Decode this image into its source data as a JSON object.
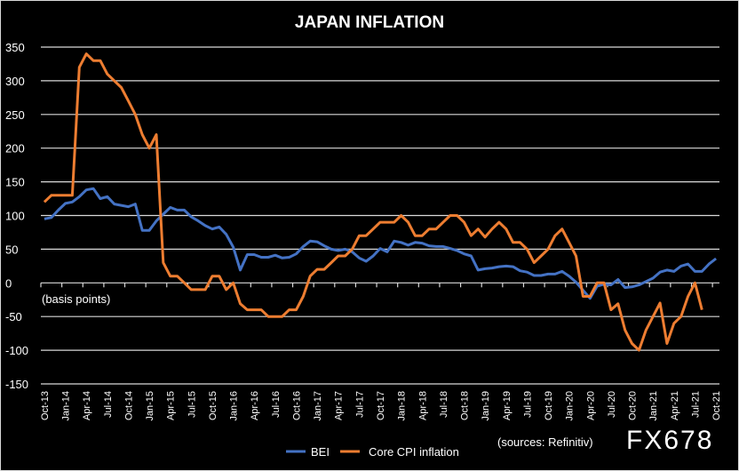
{
  "chart_data": {
    "type": "line",
    "title": "JAPAN INFLATION",
    "ylabel": "(basis points)",
    "source_note": "(sources: Refinitiv)",
    "watermark": "FX678",
    "ylim": [
      -150,
      350
    ],
    "yticks": [
      350,
      300,
      250,
      200,
      150,
      100,
      50,
      0,
      -50,
      -100,
      -150
    ],
    "grid": true,
    "legend_position": "bottom",
    "background": "#000000",
    "x": [
      "Oct-13",
      "Nov-13",
      "Dec-13",
      "Jan-14",
      "Feb-14",
      "Mar-14",
      "Apr-14",
      "May-14",
      "Jun-14",
      "Jul-14",
      "Aug-14",
      "Sep-14",
      "Oct-14",
      "Nov-14",
      "Dec-14",
      "Jan-15",
      "Feb-15",
      "Mar-15",
      "Apr-15",
      "May-15",
      "Jun-15",
      "Jul-15",
      "Aug-15",
      "Sep-15",
      "Oct-15",
      "Nov-15",
      "Dec-15",
      "Jan-16",
      "Feb-16",
      "Mar-16",
      "Apr-16",
      "May-16",
      "Jun-16",
      "Jul-16",
      "Aug-16",
      "Sep-16",
      "Oct-16",
      "Nov-16",
      "Dec-16",
      "Jan-17",
      "Feb-17",
      "Mar-17",
      "Apr-17",
      "May-17",
      "Jun-17",
      "Jul-17",
      "Aug-17",
      "Sep-17",
      "Oct-17",
      "Nov-17",
      "Dec-17",
      "Jan-18",
      "Feb-18",
      "Mar-18",
      "Apr-18",
      "May-18",
      "Jun-18",
      "Jul-18",
      "Aug-18",
      "Sep-18",
      "Oct-18",
      "Nov-18",
      "Dec-18",
      "Jan-19",
      "Feb-19",
      "Mar-19",
      "Apr-19",
      "May-19",
      "Jun-19",
      "Jul-19",
      "Aug-19",
      "Sep-19",
      "Oct-19",
      "Nov-19",
      "Dec-19",
      "Jan-20",
      "Feb-20",
      "Mar-20",
      "Apr-20",
      "May-20",
      "Jun-20",
      "Jul-20",
      "Aug-20",
      "Sep-20",
      "Oct-20",
      "Nov-20",
      "Dec-20",
      "Jan-21",
      "Feb-21",
      "Mar-21",
      "Apr-21",
      "May-21",
      "Jun-21",
      "Jul-21",
      "Aug-21",
      "Sep-21",
      "Oct-21"
    ],
    "xtick_labels": [
      "Oct-13",
      "Jan-14",
      "Apr-14",
      "Jul-14",
      "Oct-14",
      "Jan-15",
      "Apr-15",
      "Jul-15",
      "Oct-15",
      "Jan-16",
      "Apr-16",
      "Jul-16",
      "Oct-16",
      "Jan-17",
      "Apr-17",
      "Jul-17",
      "Oct-17",
      "Jan-18",
      "Apr-18",
      "Jul-18",
      "Oct-18",
      "Jan-19",
      "Apr-19",
      "Jul-19",
      "Oct-19",
      "Jan-20",
      "Apr-20",
      "Jul-20",
      "Oct-20",
      "Jan-21",
      "Apr-21",
      "Jul-21",
      "Oct-21"
    ],
    "series": [
      {
        "name": "BEI",
        "color": "#4472C4",
        "values": [
          95,
          97,
          108,
          118,
          120,
          128,
          138,
          140,
          125,
          128,
          117,
          115,
          113,
          117,
          78,
          78,
          92,
          102,
          112,
          108,
          108,
          98,
          92,
          85,
          80,
          83,
          72,
          53,
          19,
          42,
          42,
          38,
          38,
          41,
          37,
          38,
          43,
          54,
          62,
          61,
          55,
          50,
          48,
          50,
          46,
          37,
          32,
          40,
          51,
          46,
          62,
          60,
          56,
          60,
          59,
          55,
          54,
          54,
          51,
          48,
          43,
          40,
          19,
          21,
          22,
          24,
          25,
          24,
          18,
          16,
          11,
          11,
          13,
          13,
          17,
          10,
          1,
          -11,
          -23,
          -5,
          -2,
          -3,
          5,
          -7,
          -6,
          -3,
          2,
          7,
          16,
          19,
          17,
          25,
          28,
          17,
          17,
          28,
          36
        ]
      },
      {
        "name": "Core CPI inflation",
        "color": "#ED7D31",
        "values": [
          120,
          130,
          130,
          130,
          130,
          320,
          340,
          330,
          330,
          310,
          300,
          290,
          270,
          250,
          220,
          200,
          220,
          30,
          10,
          10,
          0,
          -10,
          -10,
          -10,
          10,
          10,
          -10,
          0,
          -31,
          -40,
          -40,
          -40,
          -50,
          -50,
          -50,
          -40,
          -40,
          -20,
          10,
          20,
          20,
          30,
          40,
          40,
          50,
          70,
          70,
          80,
          90,
          90,
          90,
          100,
          90,
          70,
          70,
          80,
          80,
          90,
          100,
          100,
          90,
          70,
          80,
          68,
          80,
          90,
          80,
          60,
          60,
          50,
          30,
          40,
          50,
          70,
          80,
          60,
          40,
          -20,
          -20,
          0,
          0,
          -40,
          -31,
          -70,
          -90,
          -100,
          -70,
          -50,
          -30,
          -90,
          -60,
          -50,
          -20,
          0,
          -40,
          null,
          null
        ]
      }
    ]
  }
}
